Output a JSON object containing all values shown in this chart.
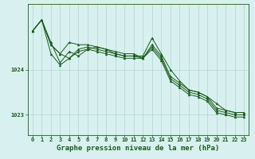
{
  "background_color": "#d8f0f0",
  "grid_color": "#afd4d4",
  "line_color": "#1a5c1a",
  "xlabel": "Graphe pression niveau de la mer (hPa)",
  "xlabel_fontsize": 6.5,
  "xlabel_bold": true,
  "ylabel_ticks": [
    1023,
    1024
  ],
  "xlim": [
    -0.5,
    23.5
  ],
  "ylim": [
    1022.55,
    1025.45
  ],
  "x": [
    0,
    1,
    2,
    3,
    4,
    5,
    6,
    7,
    8,
    9,
    10,
    11,
    12,
    13,
    14,
    15,
    16,
    17,
    18,
    19,
    20,
    21,
    22,
    23
  ],
  "line1": [
    1024.85,
    1025.1,
    1024.55,
    1024.35,
    1024.6,
    1024.55,
    1024.55,
    1024.5,
    1024.45,
    1024.4,
    1024.35,
    1024.35,
    1024.25,
    1024.55,
    1024.3,
    1023.85,
    1023.7,
    1023.55,
    1023.5,
    1023.4,
    1023.15,
    1023.1,
    1023.05,
    1023.05
  ],
  "line2": [
    1024.85,
    1025.1,
    1024.55,
    1024.35,
    1024.25,
    1024.45,
    1024.5,
    1024.45,
    1024.4,
    1024.35,
    1024.3,
    1024.3,
    1024.25,
    1024.5,
    1024.25,
    1023.8,
    1023.65,
    1023.5,
    1023.45,
    1023.35,
    1023.1,
    1023.05,
    1023.0,
    1023.0
  ],
  "line3": [
    1024.85,
    1025.1,
    1024.35,
    1024.1,
    1024.25,
    1024.4,
    1024.45,
    1024.4,
    1024.35,
    1024.3,
    1024.25,
    1024.25,
    1024.25,
    1024.45,
    1024.2,
    1023.75,
    1023.6,
    1023.45,
    1023.4,
    1023.3,
    1023.05,
    1023.0,
    1022.95,
    1022.95
  ],
  "line4": [
    1024.85,
    1025.1,
    1024.6,
    1024.15,
    1024.4,
    1024.3,
    1024.45,
    1024.5,
    1024.45,
    1024.35,
    1024.3,
    1024.3,
    1024.3,
    1024.7,
    1024.35,
    1024.0,
    1023.75,
    1023.55,
    1023.5,
    1023.4,
    1023.25,
    1023.1,
    1023.05,
    1023.05
  ],
  "xtick_labels": [
    "0",
    "1",
    "2",
    "3",
    "4",
    "5",
    "6",
    "7",
    "8",
    "9",
    "10",
    "11",
    "12",
    "13",
    "14",
    "15",
    "16",
    "17",
    "18",
    "19",
    "20",
    "21",
    "22",
    "23"
  ],
  "tick_fontsize": 5.0,
  "marker": "^",
  "markersize": 2.0,
  "linewidth": 0.7
}
